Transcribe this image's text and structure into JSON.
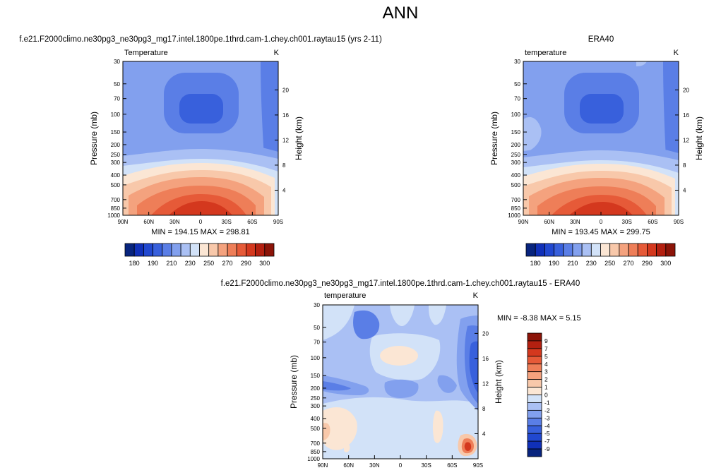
{
  "main_title": "ANN",
  "chart_data": [
    {
      "type": "heatmap",
      "title": "f.e21.F2000climo.ne30pg3_ne30pg3_mg17.intel.1800pe.1thrd.cam-1.chey.ch001.raytau15 (yrs 2-11)",
      "subtitle_left": "Temperature",
      "subtitle_right": "K",
      "ylabel_left": "Pressure (mb)",
      "ylabel_right": "Height (km)",
      "x_ticks": [
        "90N",
        "60N",
        "30N",
        "0",
        "30S",
        "60S",
        "90S"
      ],
      "x_values": [
        90,
        60,
        30,
        0,
        -30,
        -60,
        -90
      ],
      "xlim": [
        90,
        -90
      ],
      "p_ticks": [
        30,
        50,
        70,
        100,
        150,
        200,
        250,
        300,
        400,
        500,
        700,
        850,
        1000
      ],
      "plim": [
        30,
        1000
      ],
      "yscale": "log",
      "height_ticks": [
        20,
        16,
        12,
        8,
        4
      ],
      "stats": "MIN = 194.15   MAX = 298.81",
      "min": 194.15,
      "max": 298.81,
      "colorbar": {
        "orientation": "horizontal",
        "tick_labels": [
          "180",
          "190",
          "210",
          "230",
          "250",
          "270",
          "290",
          "300"
        ],
        "colors": [
          "#08247e",
          "#1030b8",
          "#2148d0",
          "#3860dc",
          "#5a7ee6",
          "#82a0ee",
          "#aac0f4",
          "#d2e2f8",
          "#fbe6d4",
          "#f8c8aa",
          "#f4a27e",
          "#ee7e58",
          "#e65a38",
          "#d4381e",
          "#b42010",
          "#8c1408"
        ]
      }
    },
    {
      "type": "heatmap",
      "title": "ERA40",
      "subtitle_left": "temperature",
      "subtitle_right": "K",
      "ylabel_left": "Pressure (mb)",
      "ylabel_right": "Height (km)",
      "x_ticks": [
        "90N",
        "60N",
        "30N",
        "0",
        "30S",
        "60S",
        "90S"
      ],
      "x_values": [
        90,
        60,
        30,
        0,
        -30,
        -60,
        -90
      ],
      "xlim": [
        90,
        -90
      ],
      "p_ticks": [
        30,
        50,
        70,
        100,
        150,
        200,
        250,
        300,
        400,
        500,
        700,
        850,
        1000
      ],
      "plim": [
        30,
        1000
      ],
      "yscale": "log",
      "height_ticks": [
        20,
        16,
        12,
        8,
        4
      ],
      "stats": "MIN = 193.45   MAX = 299.75",
      "min": 193.45,
      "max": 299.75,
      "colorbar": {
        "orientation": "horizontal",
        "tick_labels": [
          "180",
          "190",
          "210",
          "230",
          "250",
          "270",
          "290",
          "300"
        ],
        "colors": [
          "#08247e",
          "#1030b8",
          "#2148d0",
          "#3860dc",
          "#5a7ee6",
          "#82a0ee",
          "#aac0f4",
          "#d2e2f8",
          "#fbe6d4",
          "#f8c8aa",
          "#f4a27e",
          "#ee7e58",
          "#e65a38",
          "#d4381e",
          "#b42010",
          "#8c1408"
        ]
      }
    },
    {
      "type": "heatmap",
      "title": "f.e21.F2000climo.ne30pg3_ne30pg3_mg17.intel.1800pe.1thrd.cam-1.chey.ch001.raytau15 - ERA40",
      "subtitle_left": "temperature",
      "subtitle_right": "K",
      "ylabel_left": "Pressure (mb)",
      "ylabel_right": "Height (km)",
      "x_ticks": [
        "90N",
        "60N",
        "30N",
        "0",
        "30S",
        "60S",
        "90S"
      ],
      "x_values": [
        90,
        60,
        30,
        0,
        -30,
        -60,
        -90
      ],
      "xlim": [
        90,
        -90
      ],
      "p_ticks": [
        30,
        50,
        70,
        100,
        150,
        200,
        250,
        300,
        400,
        500,
        700,
        850,
        1000
      ],
      "plim": [
        30,
        1000
      ],
      "yscale": "log",
      "height_ticks": [
        20,
        16,
        12,
        8,
        4
      ],
      "stats": "MIN = -8.38  MAX =  5.15",
      "min": -8.38,
      "max": 5.15,
      "colorbar": {
        "orientation": "vertical",
        "tick_labels": [
          "9",
          "7",
          "5",
          "4",
          "3",
          "2",
          "1",
          "0",
          "-1",
          "-2",
          "-3",
          "-4",
          "-5",
          "-7",
          "-9"
        ],
        "colors": [
          "#8c1408",
          "#b42010",
          "#d4381e",
          "#e65a38",
          "#ee7e58",
          "#f4a27e",
          "#f8c8aa",
          "#fbe6d4",
          "#d2e2f8",
          "#aac0f4",
          "#82a0ee",
          "#5a7ee6",
          "#3860dc",
          "#2148d0",
          "#1030b8",
          "#08247e"
        ]
      }
    }
  ]
}
